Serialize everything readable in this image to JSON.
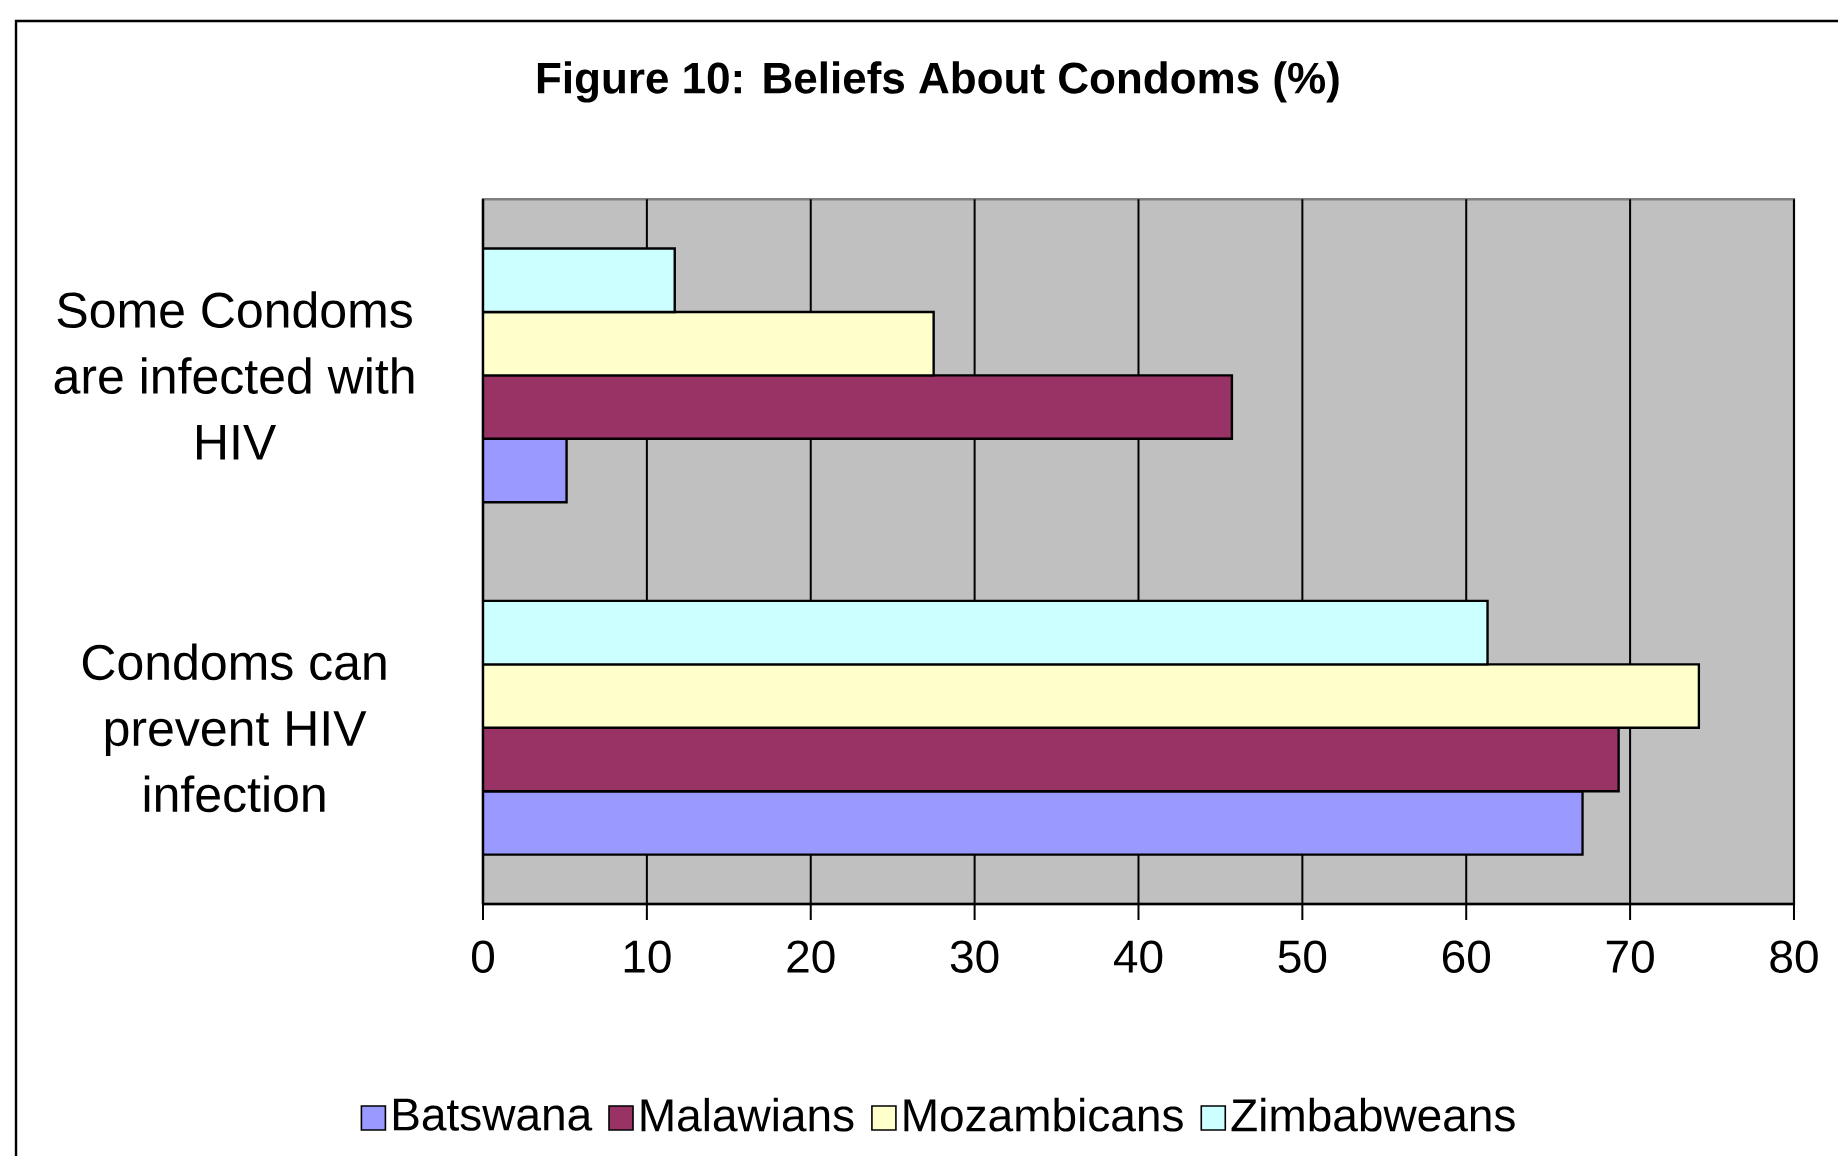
{
  "chart_data": {
    "type": "bar",
    "orientation": "horizontal",
    "title": "Figure 10: Beliefs About Condoms (%)",
    "categories": [
      "Some Condoms are infected with HIV",
      "Condoms can prevent HIV infection"
    ],
    "series": [
      {
        "name": "Batswana",
        "color": "#9999ff",
        "values": [
          5.1,
          67.1
        ]
      },
      {
        "name": "Malawians",
        "color": "#993366",
        "values": [
          45.7,
          69.3
        ]
      },
      {
        "name": "Mozambicans",
        "color": "#ffffcc",
        "values": [
          27.5,
          74.2
        ]
      },
      {
        "name": "Zimbabweans",
        "color": "#ccffff",
        "values": [
          11.7,
          61.3
        ]
      }
    ],
    "xlim": [
      0,
      80
    ],
    "xticks": [
      0,
      10,
      20,
      30,
      40,
      50,
      60,
      70,
      80
    ],
    "grid": "x",
    "legend": "bottom"
  }
}
